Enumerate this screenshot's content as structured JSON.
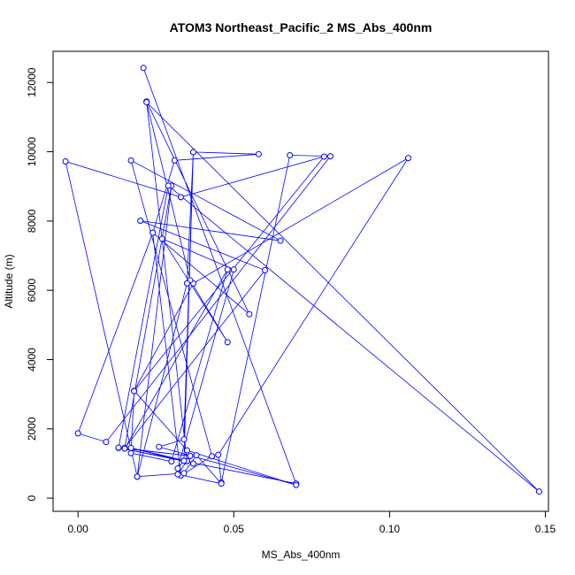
{
  "chart_data": {
    "type": "line",
    "title": "ATOM3 Northeast_Pacific_2 MS_Abs_400nm",
    "xlabel": "MS_Abs_400nm",
    "ylabel": "Altitude (m)",
    "xlim": [
      -0.008,
      0.151
    ],
    "ylim": [
      -380,
      12900
    ],
    "xticks": [
      0.0,
      0.05,
      0.1,
      0.15
    ],
    "xtick_labels": [
      "0.00",
      "0.05",
      "0.10",
      "0.15"
    ],
    "yticks": [
      0,
      2000,
      4000,
      6000,
      8000,
      10000,
      12000
    ],
    "ytick_labels": [
      "0",
      "2000",
      "4000",
      "6000",
      "8000",
      "10000",
      "12000"
    ],
    "grid": false,
    "markers": "open-circle",
    "color": "#0000ff",
    "series": [
      {
        "x": [
          0.021,
          0.07,
          0.013,
          0.035,
          0.022,
          0.055,
          0.024,
          0.031,
          0.058,
          0.037,
          0.034,
          0.026,
          0.07,
          0.035,
          0.018,
          0.037,
          0.106,
          0.045,
          0.046,
          0.068,
          0.081,
          0.009,
          0.0,
          0.024,
          0.033,
          0.043,
          0.017,
          0.065,
          0.02,
          0.06,
          0.015,
          0.03,
          0.019,
          -0.004,
          0.033,
          0.079,
          0.018,
          0.017,
          0.03,
          0.048,
          0.015,
          0.036,
          0.013,
          0.029,
          0.148,
          0.022,
          0.036,
          0.048,
          0.027,
          0.05,
          0.032,
          0.034,
          0.037,
          0.017,
          0.035,
          0.032,
          0.046,
          0.038,
          0.034,
          0.019,
          0.035,
          0.037,
          0.034,
          0.034
        ],
        "y": [
          12420,
          420,
          1450,
          1070,
          11450,
          5310,
          7660,
          9750,
          9930,
          9990,
          1700,
          1480,
          380,
          1380,
          3100,
          6200,
          9820,
          1250,
          450,
          9900,
          9870,
          1620,
          1870,
          7660,
          650,
          1210,
          9750,
          7430,
          8010,
          6580,
          1450,
          9020,
          620,
          9720,
          8690,
          9860,
          3090,
          1300,
          1060,
          6600,
          1430,
          1220,
          1460,
          9020,
          190,
          11430,
          6290,
          4500,
          7490,
          6600,
          860,
          1080,
          1000,
          1450,
          1070,
          690,
          420,
          1240,
          720,
          620,
          6200,
          9990,
          1080,
          1080
        ]
      }
    ]
  }
}
